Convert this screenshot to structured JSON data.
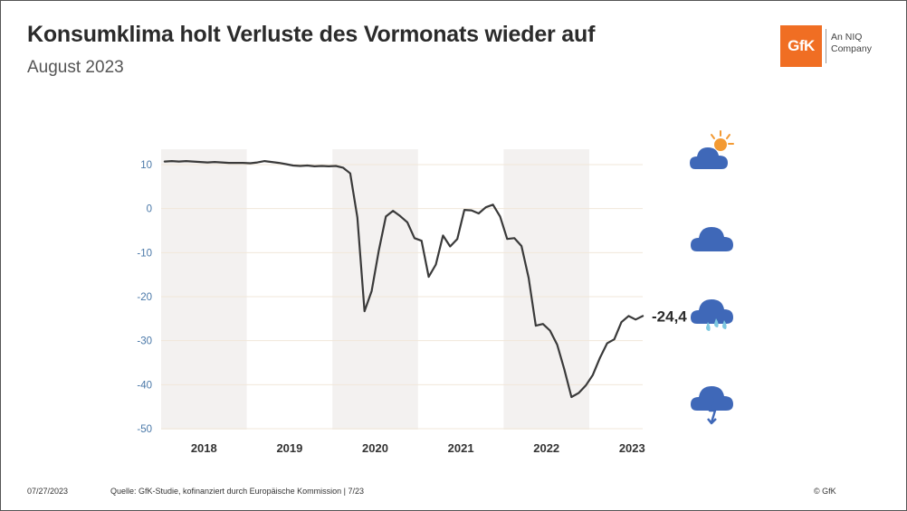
{
  "header": {
    "title": "Konsumklima holt Verluste des Vormonats wieder auf",
    "subtitle": "August 2023"
  },
  "logo": {
    "mark": "GfK",
    "tagline": "An NIQ\nCompany",
    "color": "#f06e23"
  },
  "footer": {
    "date": "07/27/2023",
    "source": "Quelle: GfK-Studie, kofinanziert durch Europäische Kommission | 7/23",
    "copyright": "© GfK"
  },
  "icons": [
    {
      "name": "sun-cloud-icon"
    },
    {
      "name": "cloud-icon"
    },
    {
      "name": "rain-cloud-icon"
    },
    {
      "name": "storm-cloud-icon"
    }
  ],
  "colors": {
    "line": "#3a3a3a",
    "band": "#f3f1f0",
    "tick": "#4a78a8",
    "cloud": "#3f68b8",
    "sun": "#f39a33",
    "rain": "#7ec8e0"
  },
  "chart_data": {
    "type": "line",
    "title": "Konsumklima holt Verluste des Vormonats wieder auf",
    "subtitle": "August 2023",
    "ylim": [
      -50,
      10
    ],
    "yticks": [
      10,
      0,
      -10,
      -20,
      -30,
      -40,
      -50
    ],
    "years": [
      "2018",
      "2019",
      "2020",
      "2021",
      "2022",
      "2023"
    ],
    "shaded_years": [
      "2018",
      "2020",
      "2022"
    ],
    "grid": true,
    "last_value_label": "-24,4",
    "series": [
      {
        "name": "",
        "points": [
          [
            "2018-01",
            10.7
          ],
          [
            "2018-02",
            10.8
          ],
          [
            "2018-03",
            10.7
          ],
          [
            "2018-04",
            10.8
          ],
          [
            "2018-05",
            10.7
          ],
          [
            "2018-06",
            10.6
          ],
          [
            "2018-07",
            10.5
          ],
          [
            "2018-08",
            10.6
          ],
          [
            "2018-09",
            10.5
          ],
          [
            "2018-10",
            10.4
          ],
          [
            "2018-11",
            10.4
          ],
          [
            "2018-12",
            10.4
          ],
          [
            "2019-01",
            10.3
          ],
          [
            "2019-02",
            10.5
          ],
          [
            "2019-03",
            10.8
          ],
          [
            "2019-04",
            10.6
          ],
          [
            "2019-05",
            10.4
          ],
          [
            "2019-06",
            10.1
          ],
          [
            "2019-07",
            9.8
          ],
          [
            "2019-08",
            9.7
          ],
          [
            "2019-09",
            9.8
          ],
          [
            "2019-10",
            9.6
          ],
          [
            "2019-11",
            9.7
          ],
          [
            "2019-12",
            9.6
          ],
          [
            "2020-01",
            9.7
          ],
          [
            "2020-02",
            9.3
          ],
          [
            "2020-03",
            8.0
          ],
          [
            "2020-04",
            -2.0
          ],
          [
            "2020-05",
            -23.3
          ],
          [
            "2020-06",
            -18.7
          ],
          [
            "2020-07",
            -9.6
          ],
          [
            "2020-08",
            -1.8
          ],
          [
            "2020-09",
            -0.5
          ],
          [
            "2020-10",
            -1.7
          ],
          [
            "2020-11",
            -3.1
          ],
          [
            "2020-12",
            -6.7
          ],
          [
            "2021-01",
            -7.3
          ],
          [
            "2021-02",
            -15.5
          ],
          [
            "2021-03",
            -12.7
          ],
          [
            "2021-04",
            -6.1
          ],
          [
            "2021-05",
            -8.6
          ],
          [
            "2021-06",
            -6.9
          ],
          [
            "2021-07",
            -0.3
          ],
          [
            "2021-08",
            -0.4
          ],
          [
            "2021-09",
            -1.1
          ],
          [
            "2021-10",
            0.3
          ],
          [
            "2021-11",
            0.9
          ],
          [
            "2021-12",
            -1.8
          ],
          [
            "2022-01",
            -6.9
          ],
          [
            "2022-02",
            -6.7
          ],
          [
            "2022-03",
            -8.5
          ],
          [
            "2022-04",
            -15.7
          ],
          [
            "2022-05",
            -26.6
          ],
          [
            "2022-06",
            -26.2
          ],
          [
            "2022-07",
            -27.7
          ],
          [
            "2022-08",
            -30.9
          ],
          [
            "2022-09",
            -36.5
          ],
          [
            "2022-10",
            -42.8
          ],
          [
            "2022-11",
            -41.9
          ],
          [
            "2022-12",
            -40.2
          ],
          [
            "2023-01",
            -37.8
          ],
          [
            "2023-02",
            -33.9
          ],
          [
            "2023-03",
            -30.6
          ],
          [
            "2023-04",
            -29.7
          ],
          [
            "2023-05",
            -25.8
          ],
          [
            "2023-06",
            -24.4
          ],
          [
            "2023-07",
            -25.2
          ],
          [
            "2023-08",
            -24.4
          ]
        ]
      }
    ]
  }
}
